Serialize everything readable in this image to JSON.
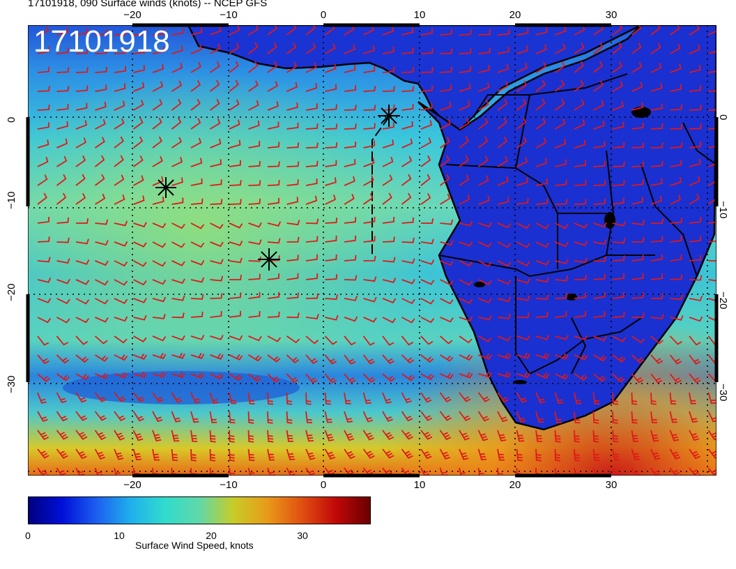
{
  "header": {
    "title": "17101918, 090 Surface winds (knots) -- NCEP GFS",
    "stamp": "17101918"
  },
  "map": {
    "lon_range": [
      -30,
      40
    ],
    "lat_range": [
      -40,
      5
    ],
    "lon_ticks": [
      "−20",
      "−10",
      "0",
      "10",
      "20",
      "30"
    ],
    "lat_ticks": [
      "0",
      "−10",
      "−20",
      "−30"
    ],
    "storm_markers": 3
  },
  "legend": {
    "label": "Surface Wind Speed, knots",
    "ticks": [
      "0",
      "10",
      "20",
      "30"
    ],
    "range": [
      0,
      36
    ]
  },
  "colors": {
    "background": "#ffffff",
    "land": "#1a32d6",
    "ocean_low": "#2a7fe0",
    "ocean_mid": "#35c8d8",
    "ocean_high": "#e0c020",
    "barb": "#e01818"
  }
}
